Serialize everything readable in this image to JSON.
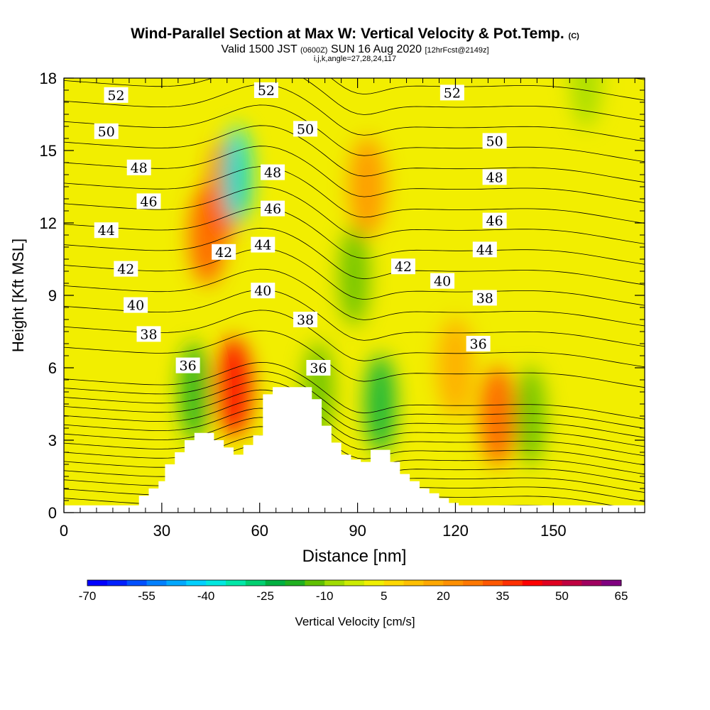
{
  "title": {
    "main": "Wind-Parallel Section at Max W: Vertical Velocity & Pot.Temp.",
    "copyright": "(C)",
    "valid_prefix": "Valid 1500 JST",
    "valid_utc": "(0600Z)",
    "valid_date": "SUN 16 Aug 2020",
    "forecast": "[12hrFcst@2149z]",
    "indices": "i,j,k,angle=27,28,24,117"
  },
  "chart_data": {
    "type": "heatmap",
    "xlabel": "Distance [nm]",
    "ylabel": "Height [Kft MSL]",
    "xlim": [
      0,
      178
    ],
    "ylim": [
      0,
      18
    ],
    "x_ticks": [
      "0",
      "30",
      "60",
      "90",
      "120",
      "150"
    ],
    "y_ticks": [
      "0",
      "3",
      "6",
      "9",
      "12",
      "15",
      "18"
    ],
    "colorbar": {
      "label": "Vertical Velocity [cm/s]",
      "tick_labels": [
        "-70",
        "-55",
        "-40",
        "-25",
        "-10",
        "5",
        "20",
        "35",
        "50",
        "65"
      ],
      "levels": [
        -70,
        -65,
        -60,
        -55,
        -50,
        -45,
        -40,
        -35,
        -30,
        -25,
        -20,
        -15,
        -10,
        -5,
        0,
        5,
        10,
        15,
        20,
        25,
        30,
        35,
        40,
        45,
        50,
        55,
        60,
        65
      ],
      "colors": [
        "#0000ff",
        "#0020ff",
        "#0050ff",
        "#0080ff",
        "#00a8ff",
        "#00d0ff",
        "#00e8e0",
        "#00e8a8",
        "#00d070",
        "#00b040",
        "#20b020",
        "#60c000",
        "#a0dc00",
        "#ccec00",
        "#f0f000",
        "#ffd800",
        "#ffc000",
        "#ffa800",
        "#ff9000",
        "#ff7800",
        "#ff5800",
        "#ff3000",
        "#ff0000",
        "#e00020",
        "#c00040",
        "#a00060",
        "#800080"
      ]
    },
    "velocity_features": [
      {
        "kind": "updraft",
        "x": 50,
        "y": 13.5,
        "peak": 35
      },
      {
        "kind": "updraft",
        "x": 44,
        "y": 11.5,
        "peak": 30
      },
      {
        "kind": "updraft",
        "x": 52,
        "y": 5.2,
        "peak": 40
      },
      {
        "kind": "updraft",
        "x": 133,
        "y": 4.0,
        "peak": 30
      },
      {
        "kind": "updraft",
        "x": 93,
        "y": 13.5,
        "peak": 20
      },
      {
        "kind": "updraft",
        "x": 120,
        "y": 6.0,
        "peak": 15
      },
      {
        "kind": "downdraft",
        "x": 53,
        "y": 14.0,
        "peak": -40
      },
      {
        "kind": "downdraft",
        "x": 97,
        "y": 4.5,
        "peak": -25
      },
      {
        "kind": "downdraft",
        "x": 40,
        "y": 5.0,
        "peak": -20
      },
      {
        "kind": "downdraft",
        "x": 89,
        "y": 9.8,
        "peak": -15
      },
      {
        "kind": "downdraft",
        "x": 78,
        "y": 5.0,
        "peak": -15
      },
      {
        "kind": "downdraft",
        "x": 143,
        "y": 4.0,
        "peak": -15
      },
      {
        "kind": "downdraft",
        "x": 160,
        "y": 18.0,
        "peak": -10
      }
    ],
    "terrain": {
      "x": [
        0,
        20,
        23,
        26,
        29,
        31,
        34,
        37,
        40,
        43,
        46,
        49,
        52,
        55,
        58,
        61,
        64,
        67,
        70,
        73,
        76,
        79,
        82,
        85,
        88,
        91,
        94,
        97,
        100,
        103,
        106,
        109,
        112,
        115,
        118,
        121,
        124,
        178
      ],
      "height_kft": [
        0.3,
        0.3,
        0.7,
        1.0,
        1.3,
        2.0,
        2.5,
        3.0,
        3.3,
        3.3,
        3.0,
        2.7,
        2.4,
        2.8,
        3.2,
        4.9,
        5.2,
        5.2,
        5.2,
        5.2,
        4.7,
        3.6,
        2.9,
        2.4,
        2.2,
        2.1,
        2.6,
        2.6,
        2.1,
        1.6,
        1.3,
        1.0,
        0.8,
        0.6,
        0.4,
        0.3,
        0.3,
        0.3
      ]
    },
    "contour_labels": [
      {
        "text": "52",
        "x": 16,
        "y": 17.3
      },
      {
        "text": "50",
        "x": 13,
        "y": 15.8
      },
      {
        "text": "48",
        "x": 23,
        "y": 14.3
      },
      {
        "text": "46",
        "x": 26,
        "y": 12.9
      },
      {
        "text": "44",
        "x": 13,
        "y": 11.7
      },
      {
        "text": "42",
        "x": 19,
        "y": 10.1
      },
      {
        "text": "40",
        "x": 22,
        "y": 8.6
      },
      {
        "text": "38",
        "x": 26,
        "y": 7.4
      },
      {
        "text": "36",
        "x": 38,
        "y": 6.1
      },
      {
        "text": "52",
        "x": 62,
        "y": 17.5
      },
      {
        "text": "50",
        "x": 74,
        "y": 15.9
      },
      {
        "text": "48",
        "x": 64,
        "y": 14.1
      },
      {
        "text": "46",
        "x": 64,
        "y": 12.6
      },
      {
        "text": "44",
        "x": 61,
        "y": 11.1
      },
      {
        "text": "42",
        "x": 49,
        "y": 10.8
      },
      {
        "text": "40",
        "x": 61,
        "y": 9.2
      },
      {
        "text": "38",
        "x": 74,
        "y": 8.0
      },
      {
        "text": "36",
        "x": 78,
        "y": 6.0
      },
      {
        "text": "52",
        "x": 119,
        "y": 17.4
      },
      {
        "text": "50",
        "x": 132,
        "y": 15.4
      },
      {
        "text": "48",
        "x": 132,
        "y": 13.9
      },
      {
        "text": "46",
        "x": 132,
        "y": 12.1
      },
      {
        "text": "44",
        "x": 129,
        "y": 10.9
      },
      {
        "text": "42",
        "x": 104,
        "y": 10.2
      },
      {
        "text": "40",
        "x": 116,
        "y": 9.6
      },
      {
        "text": "38",
        "x": 129,
        "y": 8.9
      },
      {
        "text": "36",
        "x": 127,
        "y": 7.0
      }
    ]
  }
}
